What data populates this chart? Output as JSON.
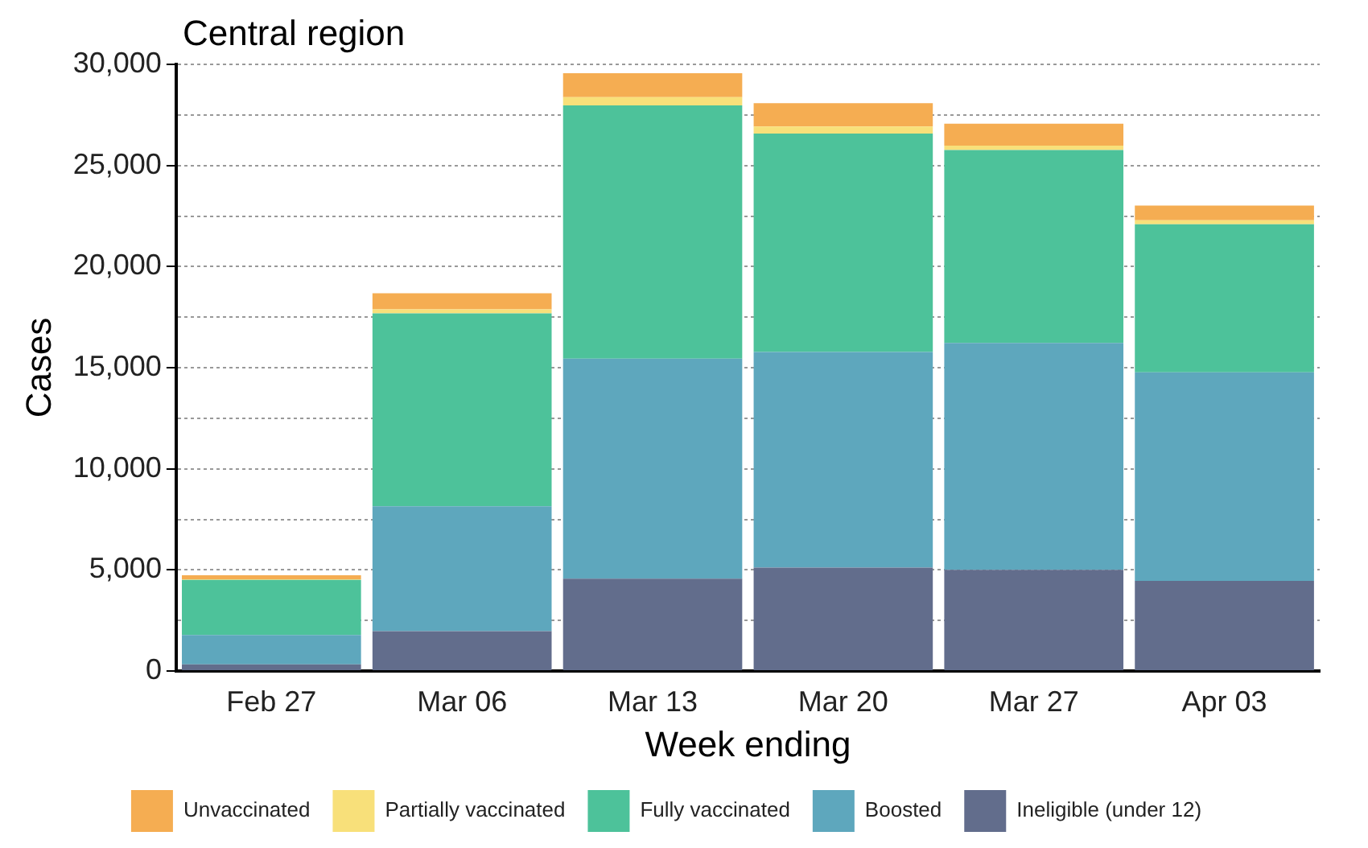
{
  "chart_data": {
    "type": "bar",
    "title": "Central region",
    "xlabel": "Week ending",
    "ylabel": "Cases",
    "stacked": true,
    "legend": "bottom",
    "grid": "y",
    "categories": [
      "Feb 27",
      "Mar 06",
      "Mar 13",
      "Mar 20",
      "Mar 27",
      "Apr 03"
    ],
    "ylim": [
      0,
      30000
    ],
    "yticks": [
      0,
      {
        "value": 2500,
        "label": null
      },
      {
        "value": 5000,
        "label": "5,000"
      },
      {
        "value": 7500,
        "label": null
      },
      {
        "value": 10000,
        "label": "10,000"
      },
      {
        "value": 12500,
        "label": null
      },
      {
        "value": 15000,
        "label": "15,000"
      },
      {
        "value": 17500,
        "label": null
      },
      {
        "value": 20000,
        "label": "20,000"
      },
      {
        "value": 22500,
        "label": null
      },
      {
        "value": 25000,
        "label": "25,000"
      },
      {
        "value": 27500,
        "label": null
      },
      {
        "value": 30000,
        "label": "30,000"
      }
    ],
    "series": [
      {
        "name": "Ineligible (under 12)",
        "color": "#626d8c",
        "values": [
          330,
          1970,
          4570,
          5110,
          5000,
          4460
        ]
      },
      {
        "name": "Boosted",
        "color": "#5ea7bd",
        "values": [
          1450,
          6180,
          10880,
          10670,
          11220,
          10310
        ]
      },
      {
        "name": "Fully vaccinated",
        "color": "#4dc29a",
        "values": [
          2730,
          9540,
          12520,
          10800,
          9540,
          7320
        ]
      },
      {
        "name": "Partially vaccinated",
        "color": "#f8e07a",
        "values": [
          30,
          190,
          410,
          350,
          220,
          200
        ]
      },
      {
        "name": "Unvaccinated",
        "color": "#f5ad52",
        "values": [
          190,
          800,
          1180,
          1150,
          1090,
          730
        ]
      }
    ]
  }
}
